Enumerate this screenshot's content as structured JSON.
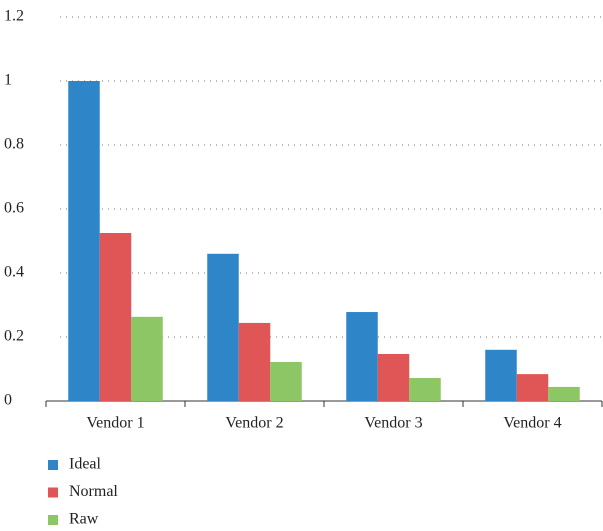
{
  "chart_data": {
    "type": "bar",
    "categories": [
      "Vendor 1",
      "Vendor 2",
      "Vendor 3",
      "Vendor 4"
    ],
    "series": [
      {
        "name": "Ideal",
        "color": "#2e86c8",
        "values": [
          1.0,
          0.46,
          0.278,
          0.16
        ]
      },
      {
        "name": "Normal",
        "color": "#e05656",
        "values": [
          0.525,
          0.244,
          0.147,
          0.084
        ]
      },
      {
        "name": "Raw",
        "color": "#8cc665",
        "values": [
          0.263,
          0.122,
          0.072,
          0.044
        ]
      }
    ],
    "ylim": [
      0,
      1.2
    ],
    "yticks": [
      0,
      0.2,
      0.4,
      0.6,
      0.8,
      1,
      1.2
    ],
    "grid": true,
    "legend": "bottom-left"
  }
}
